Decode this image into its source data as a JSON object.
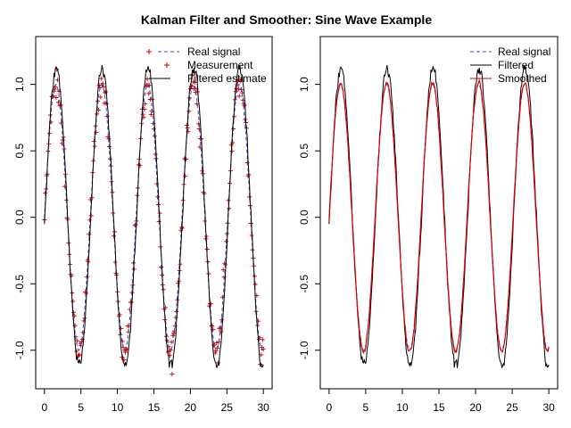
{
  "chart_data": {
    "title": "Kalman Filter and Smoother: Sine Wave Example",
    "panels": [
      {
        "type": "line",
        "xlim": [
          -1.2,
          31.2
        ],
        "ylim": [
          -1.29,
          1.36
        ],
        "xticks": [
          0,
          5,
          10,
          15,
          20,
          25,
          30
        ],
        "yticks": [
          -1.0,
          -0.5,
          0.0,
          0.5,
          1.0
        ],
        "ytick_labels": [
          "-1.0",
          "-0.5",
          "0.0",
          "0.5",
          "1.0"
        ],
        "legend": {
          "position": "top-right",
          "entries": [
            {
              "label": "Real signal",
              "style": "dashed-line",
              "color": "#4444cc"
            },
            {
              "label": "Measurement",
              "style": "plus-marker",
              "color": "#cc0000"
            },
            {
              "label": "Filtered estimate",
              "style": "solid-line",
              "color": "#000000"
            }
          ]
        },
        "series": [
          {
            "name": "Real signal",
            "color": "#4444cc",
            "dashed": true,
            "function": "sin(x)",
            "x_range": [
              0,
              30
            ],
            "n": 301
          },
          {
            "name": "Measurement",
            "color": "#cc0000",
            "marker": "+",
            "function": "sin(x) + noise",
            "x_range": [
              0,
              30
            ],
            "n": 301
          },
          {
            "name": "Filtered estimate",
            "color": "#000000",
            "function": "kalman filtered estimate",
            "x_range": [
              0,
              30
            ],
            "n": 301
          }
        ]
      },
      {
        "type": "line",
        "xlim": [
          -1.2,
          31.2
        ],
        "ylim": [
          -1.29,
          1.36
        ],
        "xticks": [
          0,
          5,
          10,
          15,
          20,
          25,
          30
        ],
        "yticks": [
          -1.0,
          -0.5,
          0.0,
          0.5,
          1.0
        ],
        "ytick_labels": [
          "-1.0",
          "-0.5",
          "0.0",
          "0.5",
          "1.0"
        ],
        "legend": {
          "position": "top-right",
          "entries": [
            {
              "label": "Real signal",
              "style": "dashed-line",
              "color": "#4444cc"
            },
            {
              "label": "Filtered",
              "style": "solid-line",
              "color": "#000000"
            },
            {
              "label": "Smoothed",
              "style": "solid-line",
              "color": "#dd0000"
            }
          ]
        },
        "series": [
          {
            "name": "Real signal",
            "color": "#4444cc",
            "dashed": true,
            "function": "sin(x)",
            "x_range": [
              0,
              30
            ],
            "n": 301
          },
          {
            "name": "Filtered",
            "color": "#000000",
            "function": "kalman filtered estimate",
            "x_range": [
              0,
              30
            ],
            "n": 301
          },
          {
            "name": "Smoothed",
            "color": "#dd0000",
            "function": "kalman smoothed estimate",
            "x_range": [
              0,
              30
            ],
            "n": 301
          }
        ]
      }
    ]
  }
}
